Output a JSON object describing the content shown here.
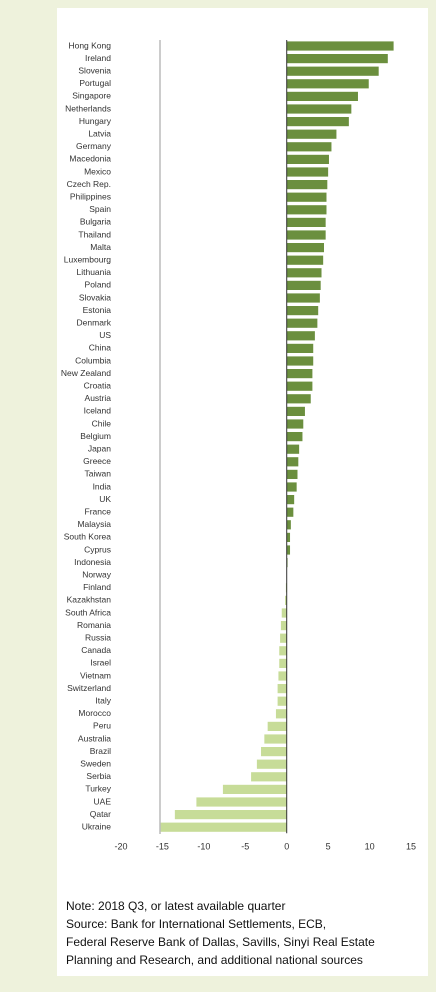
{
  "chart_data": {
    "type": "hbar",
    "categories": [
      "Hong Kong",
      "Ireland",
      "Slovenia",
      "Portugal",
      "Singapore",
      "Netherlands",
      "Hungary",
      "Latvia",
      "Germany",
      "Macedonia",
      "Mexico",
      "Czech Rep.",
      "Philippines",
      "Spain",
      "Bulgaria",
      "Thailand",
      "Malta",
      "Luxembourg",
      "Lithuania",
      "Poland",
      "Slovakia",
      "Estonia",
      "Denmark",
      "US",
      "China",
      "Columbia",
      "New Zealand",
      "Croatia",
      "Austria",
      "Iceland",
      "Chile",
      "Belgium",
      "Japan",
      "Greece",
      "Taiwan",
      "India",
      "UK",
      "France",
      "Malaysia",
      "South Korea",
      "Cyprus",
      "Indonesia",
      "Norway",
      "Finland",
      "Kazakhstan",
      "South Africa",
      "Romania",
      "Russia",
      "Canada",
      "Israel",
      "Vietnam",
      "Switzerland",
      "Italy",
      "Morocco",
      "Peru",
      "Australia",
      "Brazil",
      "Sweden",
      "Serbia",
      "Turkey",
      "UAE",
      "Qatar",
      "Ukraine"
    ],
    "values": [
      12.9,
      12.2,
      11.1,
      9.9,
      8.6,
      7.8,
      7.5,
      6.0,
      5.4,
      5.1,
      5.0,
      4.9,
      4.8,
      4.8,
      4.7,
      4.7,
      4.5,
      4.4,
      4.2,
      4.1,
      4.0,
      3.8,
      3.7,
      3.4,
      3.2,
      3.2,
      3.1,
      3.1,
      2.9,
      2.2,
      2.0,
      1.9,
      1.5,
      1.4,
      1.3,
      1.2,
      0.9,
      0.8,
      0.5,
      0.4,
      0.4,
      0.1,
      0,
      -0.1,
      -0.2,
      -0.6,
      -0.7,
      -0.8,
      -0.9,
      -0.9,
      -1.0,
      -1.1,
      -1.1,
      -1.3,
      -2.3,
      -2.7,
      -3.1,
      -3.6,
      -4.3,
      -7.7,
      -10.9,
      -13.5,
      -15.2
    ],
    "positive_color": "#6b8f3e",
    "negative_color": "#c7dc98",
    "xlim": [
      -20,
      15
    ],
    "xticks": [
      -20,
      -15,
      -10,
      -5,
      0,
      5,
      10,
      15
    ],
    "grid": false,
    "notes": [
      "Note: 2018 Q3, or latest available quarter",
      "Source: Bank for International Settlements, ECB,",
      "Federal Reserve Bank of Dallas, Savills, Sinyi Real Estate",
      "Planning and Research, and additional national sources"
    ]
  }
}
